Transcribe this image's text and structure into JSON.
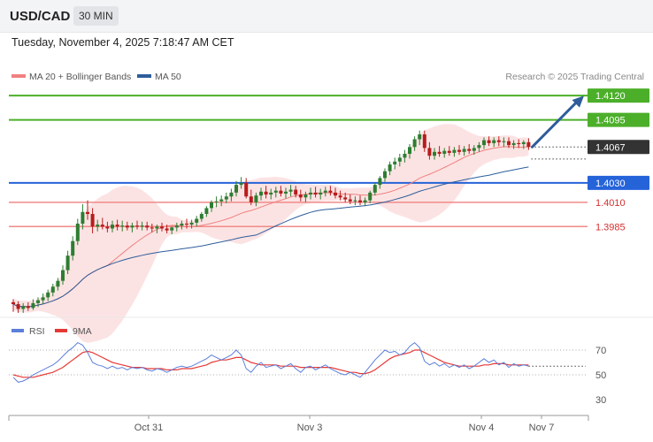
{
  "header": {
    "symbol": "USD/CAD",
    "timeframe": "30 MIN"
  },
  "timestamp": "Tuesday, November 4, 2025 7:18:47 AM CET",
  "legend": {
    "ma20": "MA 20 + Bollinger Bands",
    "ma50": "MA 50",
    "credit": "Research © 2025 Trading Central"
  },
  "rsi_legend": {
    "rsi": "RSI",
    "ma": "9MA"
  },
  "colors": {
    "up": "#2e7d32",
    "down": "#b71c1c",
    "ma20": "#f08080",
    "bands": "#fbd9d9",
    "ma50": "#2f5d9b",
    "resistance": "#4caf2a",
    "pivot": "#2563d9",
    "support": "#f08a8a",
    "current": "#333333",
    "arrow": "#2f5d9b",
    "rsi": "#5b7fdb",
    "rsi_ma": "#e53935"
  },
  "chart_data": [
    {
      "type": "candlestick",
      "title": "USD/CAD",
      "timeframe": "30 MIN",
      "ylim": [
        1.3895,
        1.4132
      ],
      "x_labels": [
        "Oct 31",
        "Nov 3",
        "Nov 4",
        "Nov 7"
      ],
      "series": [
        {
          "name": "MA 20 + Bollinger Bands",
          "kind": "ma_with_bands"
        },
        {
          "name": "MA 50",
          "kind": "ma"
        }
      ],
      "levels": [
        {
          "value": "1.4120",
          "kind": "resistance"
        },
        {
          "value": "1.4095",
          "kind": "resistance"
        },
        {
          "value": "1.4067",
          "kind": "current"
        },
        {
          "value": "1.4030",
          "kind": "pivot"
        },
        {
          "value": "1.4010",
          "kind": "support"
        },
        {
          "value": "1.3985",
          "kind": "support"
        }
      ],
      "projection": {
        "from": 1.4067,
        "to": 1.412,
        "direction": "up"
      },
      "ohlc": [
        [
          1.3907,
          1.391,
          1.3897,
          1.3905
        ],
        [
          1.3905,
          1.3908,
          1.3896,
          1.39
        ],
        [
          1.39,
          1.3906,
          1.3896,
          1.3903
        ],
        [
          1.3903,
          1.3907,
          1.3898,
          1.3901
        ],
        [
          1.3901,
          1.391,
          1.3899,
          1.3906
        ],
        [
          1.3906,
          1.3912,
          1.3902,
          1.3909
        ],
        [
          1.3909,
          1.3916,
          1.3905,
          1.3912
        ],
        [
          1.3912,
          1.392,
          1.3908,
          1.3917
        ],
        [
          1.3917,
          1.3926,
          1.3913,
          1.3923
        ],
        [
          1.3923,
          1.3932,
          1.3919,
          1.3929
        ],
        [
          1.3929,
          1.3945,
          1.3925,
          1.394
        ],
        [
          1.394,
          1.396,
          1.3936,
          1.3955
        ],
        [
          1.3955,
          1.3975,
          1.395,
          1.397
        ],
        [
          1.397,
          1.3993,
          1.3966,
          1.3988
        ],
        [
          1.3988,
          1.4008,
          1.3982,
          1.4
        ],
        [
          1.4,
          1.4012,
          1.3992,
          1.3998
        ],
        [
          1.3998,
          1.4004,
          1.3978,
          1.3985
        ],
        [
          1.3985,
          1.3992,
          1.398,
          1.3987
        ],
        [
          1.3987,
          1.3994,
          1.3982,
          1.3985
        ],
        [
          1.3985,
          1.399,
          1.3979,
          1.3983
        ],
        [
          1.3983,
          1.3991,
          1.3979,
          1.3987
        ],
        [
          1.3987,
          1.3992,
          1.3981,
          1.3985
        ],
        [
          1.3985,
          1.3991,
          1.398,
          1.3986
        ],
        [
          1.3986,
          1.399,
          1.3981,
          1.3984
        ],
        [
          1.3984,
          1.3989,
          1.3979,
          1.3986
        ],
        [
          1.3986,
          1.3991,
          1.3982,
          1.3985
        ],
        [
          1.3985,
          1.399,
          1.3981,
          1.3986
        ],
        [
          1.3986,
          1.399,
          1.3981,
          1.3984
        ],
        [
          1.3984,
          1.3988,
          1.3979,
          1.3983
        ],
        [
          1.3983,
          1.3987,
          1.3978,
          1.3985
        ],
        [
          1.3985,
          1.3989,
          1.398,
          1.3983
        ],
        [
          1.3983,
          1.3987,
          1.3978,
          1.3981
        ],
        [
          1.3981,
          1.3985,
          1.3977,
          1.3984
        ],
        [
          1.3984,
          1.3989,
          1.398,
          1.3986
        ],
        [
          1.3986,
          1.3991,
          1.3982,
          1.3988
        ],
        [
          1.3988,
          1.3993,
          1.3983,
          1.3987
        ],
        [
          1.3987,
          1.3992,
          1.3983,
          1.3989
        ],
        [
          1.3989,
          1.3996,
          1.3985,
          1.3993
        ],
        [
          1.3993,
          1.4,
          1.399,
          1.3998
        ],
        [
          1.3998,
          1.4006,
          1.3995,
          1.4004
        ],
        [
          1.4004,
          1.4012,
          1.4,
          1.401
        ],
        [
          1.401,
          1.4016,
          1.4005,
          1.4011
        ],
        [
          1.4011,
          1.4017,
          1.4006,
          1.4013
        ],
        [
          1.4013,
          1.402,
          1.4009,
          1.4016
        ],
        [
          1.4016,
          1.4024,
          1.4011,
          1.402
        ],
        [
          1.402,
          1.4032,
          1.4016,
          1.4028
        ],
        [
          1.4028,
          1.4036,
          1.4024,
          1.403
        ],
        [
          1.403,
          1.4035,
          1.4014,
          1.4016
        ],
        [
          1.4016,
          1.4023,
          1.4007,
          1.401
        ],
        [
          1.401,
          1.402,
          1.4006,
          1.4017
        ],
        [
          1.4017,
          1.4025,
          1.4012,
          1.4021
        ],
        [
          1.4021,
          1.4027,
          1.4014,
          1.4018
        ],
        [
          1.4018,
          1.4024,
          1.4013,
          1.402
        ],
        [
          1.402,
          1.4026,
          1.4015,
          1.4022
        ],
        [
          1.4022,
          1.4027,
          1.4016,
          1.4019
        ],
        [
          1.4019,
          1.4025,
          1.4014,
          1.4021
        ],
        [
          1.4021,
          1.4028,
          1.4016,
          1.4023
        ],
        [
          1.4023,
          1.4027,
          1.4015,
          1.4018
        ],
        [
          1.4018,
          1.4023,
          1.4011,
          1.4015
        ],
        [
          1.4015,
          1.4021,
          1.401,
          1.4018
        ],
        [
          1.4018,
          1.4025,
          1.4013,
          1.402
        ],
        [
          1.402,
          1.4026,
          1.4015,
          1.4018
        ],
        [
          1.4018,
          1.4024,
          1.4013,
          1.402
        ],
        [
          1.402,
          1.4026,
          1.4016,
          1.4022
        ],
        [
          1.4022,
          1.4027,
          1.4017,
          1.402
        ],
        [
          1.402,
          1.4025,
          1.4014,
          1.4017
        ],
        [
          1.4017,
          1.4022,
          1.4012,
          1.4015
        ],
        [
          1.4015,
          1.402,
          1.401,
          1.4013
        ],
        [
          1.4013,
          1.4018,
          1.4008,
          1.4011
        ],
        [
          1.4011,
          1.4016,
          1.4007,
          1.4012
        ],
        [
          1.4012,
          1.4017,
          1.4007,
          1.401
        ],
        [
          1.401,
          1.4015,
          1.4006,
          1.4012
        ],
        [
          1.4012,
          1.4022,
          1.4009,
          1.402
        ],
        [
          1.402,
          1.403,
          1.4017,
          1.4028
        ],
        [
          1.4028,
          1.4037,
          1.4024,
          1.4035
        ],
        [
          1.4035,
          1.4045,
          1.4031,
          1.4042
        ],
        [
          1.4042,
          1.4052,
          1.4038,
          1.4049
        ],
        [
          1.4049,
          1.4056,
          1.4044,
          1.4052
        ],
        [
          1.4052,
          1.406,
          1.4047,
          1.4056
        ],
        [
          1.4056,
          1.4064,
          1.4051,
          1.406
        ],
        [
          1.406,
          1.407,
          1.4055,
          1.4067
        ],
        [
          1.4067,
          1.4078,
          1.4063,
          1.4075
        ],
        [
          1.4075,
          1.4084,
          1.4069,
          1.408
        ],
        [
          1.408,
          1.4084,
          1.4062,
          1.4066
        ],
        [
          1.4066,
          1.4072,
          1.4054,
          1.4058
        ],
        [
          1.4058,
          1.4066,
          1.4054,
          1.4062
        ],
        [
          1.4062,
          1.4068,
          1.4057,
          1.406
        ],
        [
          1.406,
          1.4066,
          1.4056,
          1.4063
        ],
        [
          1.4063,
          1.4068,
          1.4058,
          1.4061
        ],
        [
          1.4061,
          1.4067,
          1.4057,
          1.4064
        ],
        [
          1.4064,
          1.4069,
          1.4059,
          1.4062
        ],
        [
          1.4062,
          1.4068,
          1.4058,
          1.4065
        ],
        [
          1.4065,
          1.407,
          1.406,
          1.4063
        ],
        [
          1.4063,
          1.4069,
          1.4059,
          1.4066
        ],
        [
          1.4066,
          1.4072,
          1.4062,
          1.4069
        ],
        [
          1.4069,
          1.4077,
          1.4065,
          1.4074
        ],
        [
          1.4074,
          1.4078,
          1.4068,
          1.4071
        ],
        [
          1.4071,
          1.4077,
          1.4067,
          1.4074
        ],
        [
          1.4074,
          1.4078,
          1.4068,
          1.4072
        ],
        [
          1.4072,
          1.4077,
          1.4067,
          1.4073
        ],
        [
          1.4073,
          1.4077,
          1.4066,
          1.4069
        ],
        [
          1.4069,
          1.4074,
          1.4065,
          1.4071
        ],
        [
          1.4071,
          1.4075,
          1.4066,
          1.407
        ],
        [
          1.407,
          1.4074,
          1.4065,
          1.4072
        ],
        [
          1.4072,
          1.4076,
          1.4064,
          1.4067
        ]
      ]
    },
    {
      "type": "line",
      "title": "RSI",
      "series": [
        {
          "name": "RSI"
        },
        {
          "name": "9MA"
        }
      ],
      "ylim": [
        20,
        80
      ],
      "yticks": [
        30,
        50,
        70
      ],
      "rsi": [
        48,
        44,
        45,
        47,
        50,
        52,
        54,
        56,
        58,
        61,
        65,
        69,
        72,
        76,
        74,
        68,
        60,
        58,
        57,
        55,
        57,
        55,
        56,
        54,
        56,
        55,
        56,
        54,
        53,
        55,
        54,
        52,
        54,
        56,
        57,
        56,
        57,
        59,
        61,
        63,
        66,
        64,
        62,
        64,
        66,
        70,
        66,
        55,
        52,
        57,
        60,
        56,
        57,
        58,
        55,
        57,
        59,
        55,
        52,
        56,
        57,
        54,
        56,
        58,
        55,
        53,
        51,
        50,
        52,
        50,
        48,
        52,
        57,
        62,
        66,
        70,
        68,
        69,
        66,
        68,
        73,
        76,
        72,
        61,
        58,
        60,
        57,
        59,
        56,
        58,
        56,
        58,
        55,
        57,
        60,
        63,
        60,
        62,
        58,
        60,
        56,
        59,
        57,
        58,
        57
      ],
      "rsi_ma": [
        50,
        49,
        48,
        48,
        48,
        49,
        50,
        51,
        52,
        54,
        56,
        59,
        62,
        65,
        68,
        69,
        68,
        66,
        64,
        62,
        60,
        59,
        58,
        57,
        56,
        56,
        56,
        55,
        55,
        55,
        55,
        54,
        54,
        54,
        55,
        55,
        55,
        56,
        57,
        58,
        60,
        61,
        62,
        62,
        63,
        64,
        64,
        62,
        60,
        59,
        58,
        58,
        58,
        58,
        57,
        57,
        57,
        57,
        56,
        56,
        56,
        56,
        56,
        56,
        56,
        55,
        54,
        53,
        52,
        52,
        51,
        51,
        52,
        54,
        57,
        60,
        63,
        65,
        66,
        67,
        68,
        70,
        70,
        68,
        66,
        64,
        62,
        60,
        59,
        58,
        57,
        57,
        57,
        57,
        57,
        58,
        58,
        59,
        59,
        59,
        58,
        58,
        58,
        58,
        58
      ]
    }
  ]
}
